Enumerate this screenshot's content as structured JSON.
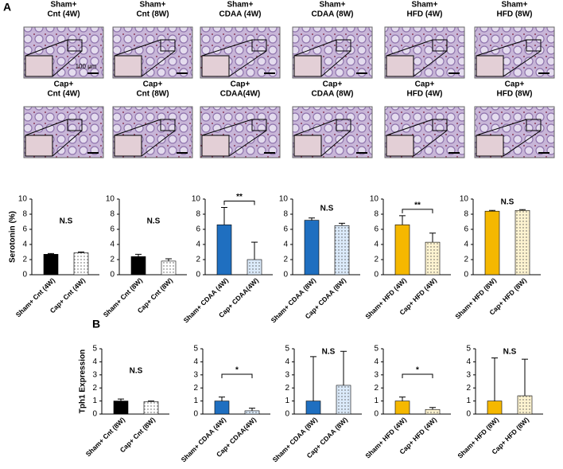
{
  "panel_a": {
    "label": "A",
    "scale_bar": "100 μm",
    "images": [
      {
        "line1": "Sham+",
        "line2": "Cnt (4W)"
      },
      {
        "line1": "Sham+",
        "line2": "Cnt (8W)"
      },
      {
        "line1": "Sham+",
        "line2": "CDAA (4W)"
      },
      {
        "line1": "Sham+",
        "line2": "CDAA (8W)"
      },
      {
        "line1": "Sham+",
        "line2": "HFD (4W)"
      },
      {
        "line1": "Sham+",
        "line2": "HFD (8W)"
      },
      {
        "line1": "Cap+",
        "line2": "Cnt (4W)"
      },
      {
        "line1": "Cap+",
        "line2": "Cnt (8W)"
      },
      {
        "line1": "Cap+",
        "line2": "CDAA(4W)"
      },
      {
        "line1": "Cap+",
        "line2": "CDAA (8W)"
      },
      {
        "line1": "Cap+",
        "line2": "HFD (4W)"
      },
      {
        "line1": "Cap+",
        "line2": "HFD (8W)"
      }
    ]
  },
  "panel_b": {
    "label": "B"
  },
  "chart_data": [
    {
      "type": "bar",
      "y_label": "Serotonin (%)",
      "categories": [
        "Sham+ Cnt (4W)",
        "Cap+ Cnt (4W)"
      ],
      "values": [
        2.7,
        2.9
      ],
      "errors": [
        0.1,
        0.1
      ],
      "colors": [
        "#000000",
        "#ffffff"
      ],
      "patterns": [
        "solid",
        "dotted"
      ],
      "annotation": "N.S",
      "bracket": false,
      "ylim": [
        0,
        10
      ],
      "yticks": [
        0,
        2,
        4,
        6,
        8,
        10
      ]
    },
    {
      "type": "bar",
      "categories": [
        "Sham+ Cnt (8W)",
        "Cap+ Cnt (8W)"
      ],
      "values": [
        2.4,
        1.8
      ],
      "errors": [
        0.3,
        0.3
      ],
      "colors": [
        "#000000",
        "#ffffff"
      ],
      "patterns": [
        "solid",
        "dotted"
      ],
      "annotation": "N.S",
      "bracket": false,
      "ylim": [
        0,
        10
      ],
      "yticks": [
        0,
        2,
        4,
        6,
        8,
        10
      ]
    },
    {
      "type": "bar",
      "categories": [
        "Sham+ CDAA (4W)",
        "Cap+ CDAA(4W)"
      ],
      "values": [
        6.6,
        2.0
      ],
      "errors": [
        2.3,
        2.3
      ],
      "colors": [
        "#1f6fc0",
        "#dbeafa"
      ],
      "patterns": [
        "solid",
        "dotted"
      ],
      "annotation": "**",
      "bracket": true,
      "ylim": [
        0,
        10
      ],
      "yticks": [
        0,
        2,
        4,
        6,
        8,
        10
      ]
    },
    {
      "type": "bar",
      "categories": [
        "Sham+ CDAA (8W)",
        "Cap+ CDAA (8W)"
      ],
      "values": [
        7.2,
        6.5
      ],
      "errors": [
        0.3,
        0.3
      ],
      "colors": [
        "#1f6fc0",
        "#dbeafa"
      ],
      "patterns": [
        "solid",
        "dotted"
      ],
      "annotation": "N.S",
      "bracket": false,
      "ylim": [
        0,
        10
      ],
      "yticks": [
        0,
        2,
        4,
        6,
        8,
        10
      ]
    },
    {
      "type": "bar",
      "categories": [
        "Sham+ HFD (4W)",
        "Cap+ HFD (4W)"
      ],
      "values": [
        6.6,
        4.3
      ],
      "errors": [
        1.2,
        1.2
      ],
      "colors": [
        "#f5b800",
        "#fdf3d0"
      ],
      "patterns": [
        "solid",
        "dotted"
      ],
      "annotation": "**",
      "bracket": true,
      "ylim": [
        0,
        10
      ],
      "yticks": [
        0,
        2,
        4,
        6,
        8,
        10
      ]
    },
    {
      "type": "bar",
      "categories": [
        "Sham+ HFD (8W)",
        "Cap+ HFD (8W)"
      ],
      "values": [
        8.4,
        8.5
      ],
      "errors": [
        0.1,
        0.1
      ],
      "colors": [
        "#f5b800",
        "#fdf3d0"
      ],
      "patterns": [
        "solid",
        "dotted"
      ],
      "annotation": "N.S",
      "bracket": false,
      "ylim": [
        0,
        10
      ],
      "yticks": [
        0,
        2,
        4,
        6,
        8,
        10
      ]
    },
    {
      "type": "bar",
      "y_label": "Tph1 Expression",
      "categories": [
        "Sham+ Cnt (8W)",
        "Cap+ Cnt (8W)"
      ],
      "values": [
        1.0,
        0.95
      ],
      "errors": [
        0.15,
        0.05
      ],
      "colors": [
        "#000000",
        "#ffffff"
      ],
      "patterns": [
        "solid",
        "dotted"
      ],
      "annotation": "N.S",
      "bracket": false,
      "ylim": [
        0,
        5
      ],
      "yticks": [
        0,
        1,
        2,
        3,
        4,
        5
      ]
    },
    {
      "type": "bar",
      "categories": [
        "Sham+ CDAA (4W)",
        "Cap+ CDAA(4W)"
      ],
      "values": [
        1.0,
        0.25
      ],
      "errors": [
        0.3,
        0.2
      ],
      "colors": [
        "#1f6fc0",
        "#dbeafa"
      ],
      "patterns": [
        "solid",
        "dotted"
      ],
      "annotation": "*",
      "bracket": true,
      "ylim": [
        0,
        5
      ],
      "yticks": [
        0,
        1,
        2,
        3,
        4,
        5
      ]
    },
    {
      "type": "bar",
      "categories": [
        "Sham+ CDAA (8W)",
        "Cap+ CDAA (8W)"
      ],
      "values": [
        1.0,
        2.2
      ],
      "errors": [
        3.4,
        2.6
      ],
      "colors": [
        "#1f6fc0",
        "#dbeafa"
      ],
      "patterns": [
        "solid",
        "dotted"
      ],
      "annotation": "N.S",
      "bracket": false,
      "ylim": [
        0,
        5
      ],
      "yticks": [
        0,
        1,
        2,
        3,
        4,
        5
      ]
    },
    {
      "type": "bar",
      "categories": [
        "Sham+ HFD (4W)",
        "Cap+ HFD (4W)"
      ],
      "values": [
        1.0,
        0.35
      ],
      "errors": [
        0.3,
        0.15
      ],
      "colors": [
        "#f5b800",
        "#fdf3d0"
      ],
      "patterns": [
        "solid",
        "dotted"
      ],
      "annotation": "*",
      "bracket": true,
      "ylim": [
        0,
        5
      ],
      "yticks": [
        0,
        1,
        2,
        3,
        4,
        5
      ]
    },
    {
      "type": "bar",
      "categories": [
        "Sham+ HFD (8W)",
        "Cap+ HFD (8W)"
      ],
      "values": [
        1.0,
        1.4
      ],
      "errors": [
        3.3,
        2.8
      ],
      "colors": [
        "#f5b800",
        "#fdf3d0"
      ],
      "patterns": [
        "solid",
        "dotted"
      ],
      "annotation": "N.S",
      "bracket": false,
      "ylim": [
        0,
        5
      ],
      "yticks": [
        0,
        1,
        2,
        3,
        4,
        5
      ]
    }
  ]
}
